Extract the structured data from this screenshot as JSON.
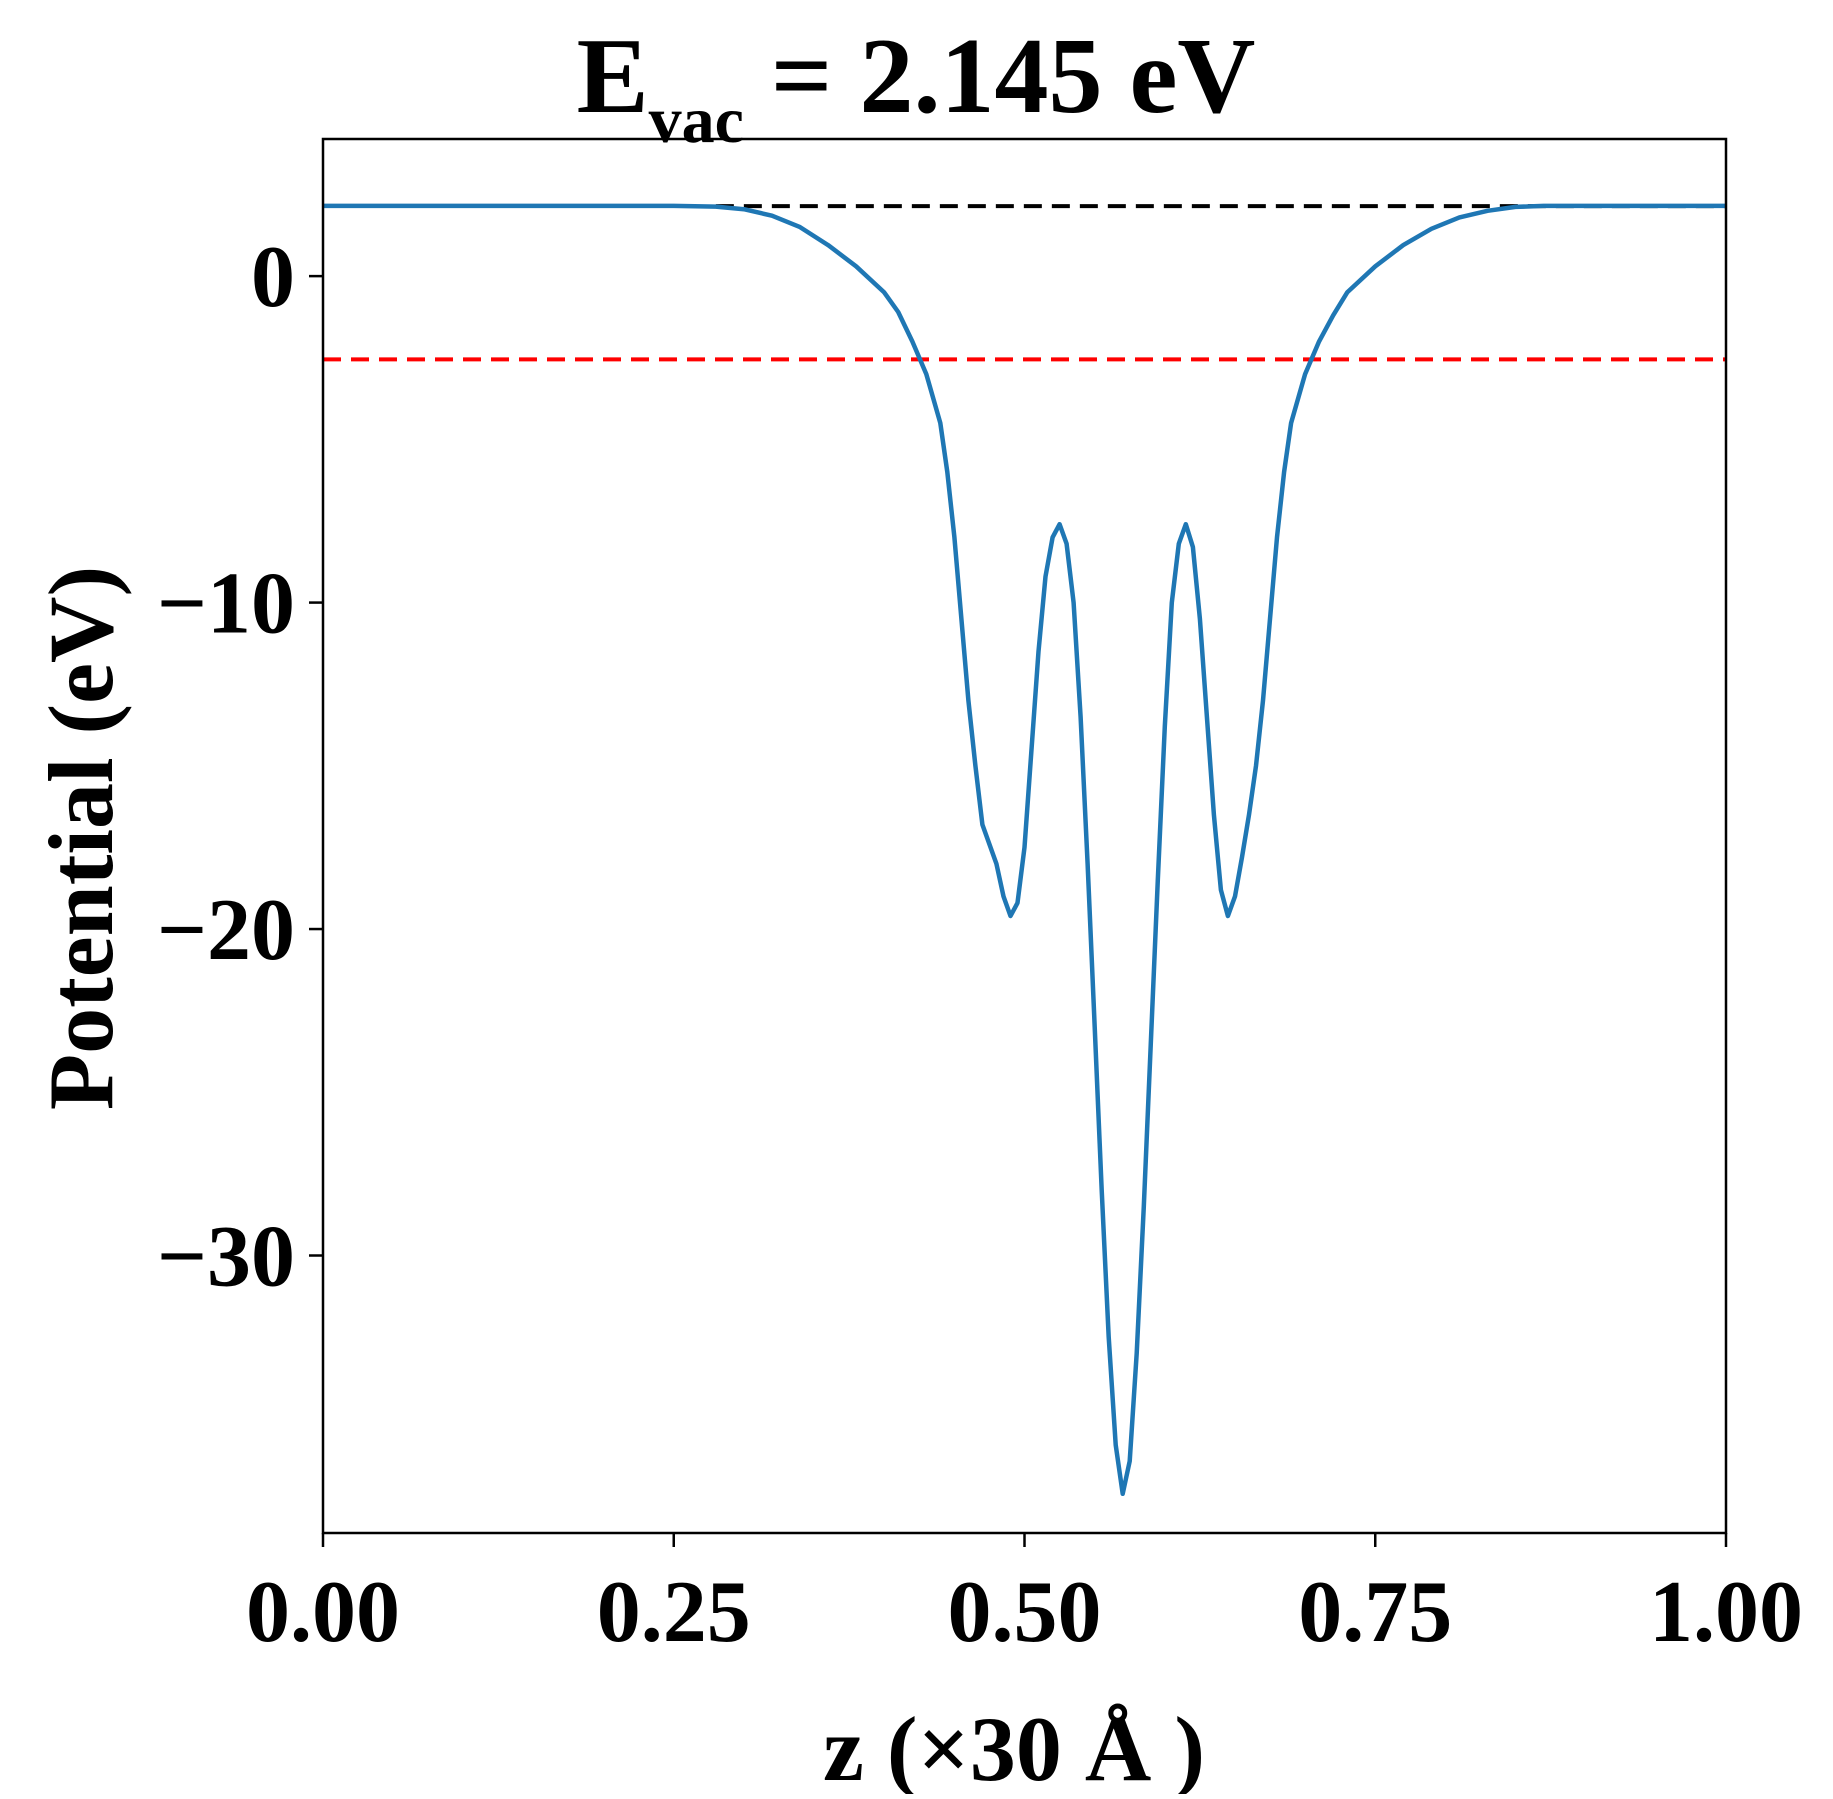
{
  "chart_data": {
    "type": "line",
    "title": {
      "symbol": "E",
      "subscript": "vac",
      "rest": " = 2.145 eV"
    },
    "xlabel": "z (×30 Å )",
    "ylabel": "Potential (eV)",
    "xlim": [
      0.0,
      1.0
    ],
    "ylim": [
      -38.5,
      4.2
    ],
    "x_ticks": [
      {
        "value": 0.0,
        "label": "0.00"
      },
      {
        "value": 0.25,
        "label": "0.25"
      },
      {
        "value": 0.5,
        "label": "0.50"
      },
      {
        "value": 0.75,
        "label": "0.75"
      },
      {
        "value": 1.0,
        "label": "1.00"
      }
    ],
    "y_ticks": [
      {
        "value": 0,
        "label": "0"
      },
      {
        "value": -10,
        "label": "−10"
      },
      {
        "value": -20,
        "label": "−20"
      },
      {
        "value": -30,
        "label": "−30"
      }
    ],
    "grid": false,
    "series": [
      {
        "color": "#1f77b4",
        "points": [
          [
            0.0,
            2.15
          ],
          [
            0.05,
            2.15
          ],
          [
            0.1,
            2.15
          ],
          [
            0.15,
            2.15
          ],
          [
            0.2,
            2.15
          ],
          [
            0.25,
            2.15
          ],
          [
            0.28,
            2.13
          ],
          [
            0.3,
            2.05
          ],
          [
            0.32,
            1.85
          ],
          [
            0.34,
            1.5
          ],
          [
            0.36,
            0.95
          ],
          [
            0.38,
            0.3
          ],
          [
            0.4,
            -0.5
          ],
          [
            0.41,
            -1.1
          ],
          [
            0.42,
            -2.0
          ],
          [
            0.43,
            -3.0
          ],
          [
            0.44,
            -4.5
          ],
          [
            0.445,
            -6.0
          ],
          [
            0.45,
            -8.0
          ],
          [
            0.455,
            -10.5
          ],
          [
            0.46,
            -13.0
          ],
          [
            0.465,
            -15.0
          ],
          [
            0.47,
            -16.8
          ],
          [
            0.48,
            -18.0
          ],
          [
            0.485,
            -19.0
          ],
          [
            0.49,
            -19.6
          ],
          [
            0.495,
            -19.2
          ],
          [
            0.5,
            -17.5
          ],
          [
            0.505,
            -14.5
          ],
          [
            0.51,
            -11.5
          ],
          [
            0.515,
            -9.2
          ],
          [
            0.52,
            -8.0
          ],
          [
            0.525,
            -7.6
          ],
          [
            0.53,
            -8.2
          ],
          [
            0.535,
            -10.0
          ],
          [
            0.54,
            -13.5
          ],
          [
            0.545,
            -18.0
          ],
          [
            0.55,
            -23.0
          ],
          [
            0.555,
            -28.0
          ],
          [
            0.56,
            -32.5
          ],
          [
            0.565,
            -35.8
          ],
          [
            0.57,
            -37.3
          ],
          [
            0.575,
            -36.3
          ],
          [
            0.58,
            -33.0
          ],
          [
            0.585,
            -28.5
          ],
          [
            0.59,
            -23.5
          ],
          [
            0.595,
            -18.5
          ],
          [
            0.6,
            -13.8
          ],
          [
            0.605,
            -10.0
          ],
          [
            0.61,
            -8.2
          ],
          [
            0.615,
            -7.6
          ],
          [
            0.62,
            -8.3
          ],
          [
            0.625,
            -10.5
          ],
          [
            0.63,
            -13.5
          ],
          [
            0.635,
            -16.5
          ],
          [
            0.64,
            -18.8
          ],
          [
            0.645,
            -19.6
          ],
          [
            0.65,
            -19.0
          ],
          [
            0.655,
            -17.8
          ],
          [
            0.66,
            -16.5
          ],
          [
            0.665,
            -15.0
          ],
          [
            0.67,
            -13.0
          ],
          [
            0.675,
            -10.5
          ],
          [
            0.68,
            -8.0
          ],
          [
            0.685,
            -6.0
          ],
          [
            0.69,
            -4.5
          ],
          [
            0.7,
            -3.0
          ],
          [
            0.71,
            -2.0
          ],
          [
            0.72,
            -1.2
          ],
          [
            0.73,
            -0.5
          ],
          [
            0.75,
            0.3
          ],
          [
            0.77,
            0.95
          ],
          [
            0.79,
            1.45
          ],
          [
            0.81,
            1.8
          ],
          [
            0.83,
            2.0
          ],
          [
            0.85,
            2.12
          ],
          [
            0.87,
            2.15
          ],
          [
            0.9,
            2.15
          ],
          [
            0.95,
            2.15
          ],
          [
            1.0,
            2.15
          ]
        ]
      }
    ],
    "reference_lines": [
      {
        "orientation": "horizontal",
        "y": 2.145,
        "color": "#000000",
        "style": "dashed",
        "x_range": [
          0.28,
          1.0
        ]
      },
      {
        "orientation": "horizontal",
        "y": -2.55,
        "color": "#ff0000",
        "style": "dashed",
        "x_range": [
          0.0,
          1.0
        ]
      }
    ]
  }
}
